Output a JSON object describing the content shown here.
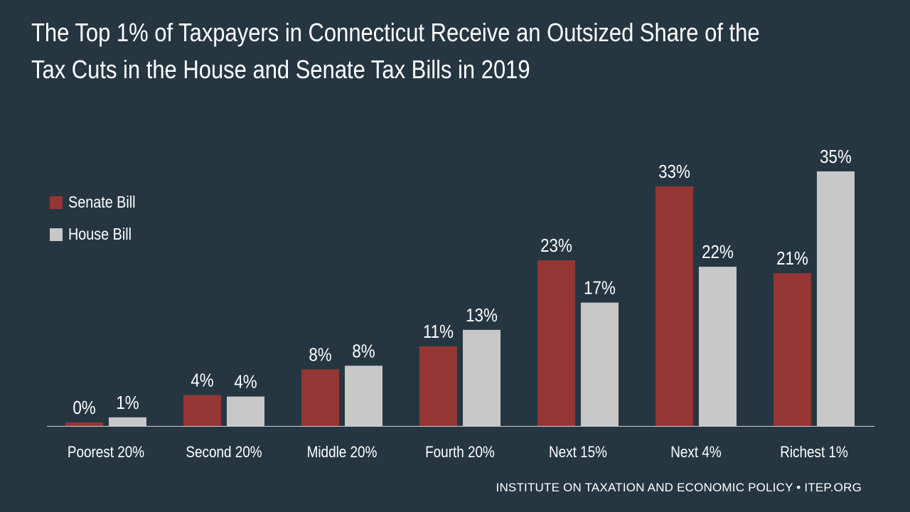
{
  "title": "The Top 1% of Taxpayers in Connecticut Receive an Outsized Share of the Tax Cuts in the House and Senate Tax Bills in 2019",
  "source": "INSTITUTE ON TAXATION AND ECONOMIC POLICY • ITEP.ORG",
  "colors": {
    "background": "#253641",
    "senate": "#943634",
    "house": "#c8c8c8",
    "text": "#ffffff",
    "axis": "#cfd4d8"
  },
  "legend": {
    "placement": "left",
    "items": [
      {
        "label": "Senate Bill",
        "color": "#943634"
      },
      {
        "label": "House Bill",
        "color": "#c8c8c8"
      }
    ]
  },
  "chart_data": {
    "type": "bar",
    "title": "The Top 1% of Taxpayers in Connecticut Receive an Outsized Share of the Tax Cuts in the House and Senate Tax Bills in 2019",
    "categories": [
      "Poorest 20%",
      "Second 20%",
      "Middle 20%",
      "Fourth 20%",
      "Next 15%",
      "Next 4%",
      "Richest 1%"
    ],
    "series": [
      {
        "name": "Senate Bill",
        "values": [
          0.5,
          4.3,
          7.9,
          11.1,
          23.1,
          33.4,
          21.3
        ],
        "labels": [
          "0%",
          "4%",
          "8%",
          "11%",
          "23%",
          "33%",
          "21%"
        ]
      },
      {
        "name": "House Bill",
        "values": [
          1.2,
          4.1,
          8.4,
          13.4,
          17.2,
          22.2,
          35.5
        ],
        "labels": [
          "1%",
          "4%",
          "8%",
          "13%",
          "17%",
          "22%",
          "35%"
        ]
      }
    ],
    "xlabel": "",
    "ylabel": "",
    "ylim": [
      0,
      35.5
    ],
    "grid": false,
    "legend_placement": "left"
  }
}
